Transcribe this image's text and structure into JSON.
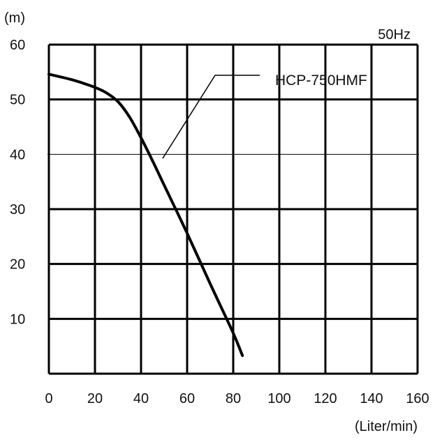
{
  "chart_data": {
    "type": "line",
    "frequency_label": "50Hz",
    "ylabel": "(m)",
    "xlabel": "(Liter/min)",
    "xlim": [
      0,
      160
    ],
    "ylim": [
      0,
      60
    ],
    "x_ticks": [
      0,
      20,
      40,
      60,
      80,
      100,
      120,
      140,
      160
    ],
    "y_ticks": [
      10,
      20,
      30,
      40,
      50,
      60
    ],
    "grid": true,
    "series": [
      {
        "name": "HCP-750HMF",
        "color": "#000000",
        "points": [
          {
            "x": 0,
            "y": 54.6
          },
          {
            "x": 10,
            "y": 53.6
          },
          {
            "x": 20,
            "y": 52.2
          },
          {
            "x": 25,
            "y": 51.2
          },
          {
            "x": 30,
            "y": 49.6
          },
          {
            "x": 35,
            "y": 46.8
          },
          {
            "x": 40,
            "y": 43.0
          },
          {
            "x": 45,
            "y": 38.8
          },
          {
            "x": 50,
            "y": 34.4
          },
          {
            "x": 60,
            "y": 25.6
          },
          {
            "x": 70,
            "y": 16.4
          },
          {
            "x": 80,
            "y": 7.4
          },
          {
            "x": 84,
            "y": 3.3
          }
        ]
      }
    ],
    "annotations": [
      {
        "text": "HCP-750HMF",
        "points_to_x": 50,
        "points_to_y": 39
      }
    ]
  }
}
